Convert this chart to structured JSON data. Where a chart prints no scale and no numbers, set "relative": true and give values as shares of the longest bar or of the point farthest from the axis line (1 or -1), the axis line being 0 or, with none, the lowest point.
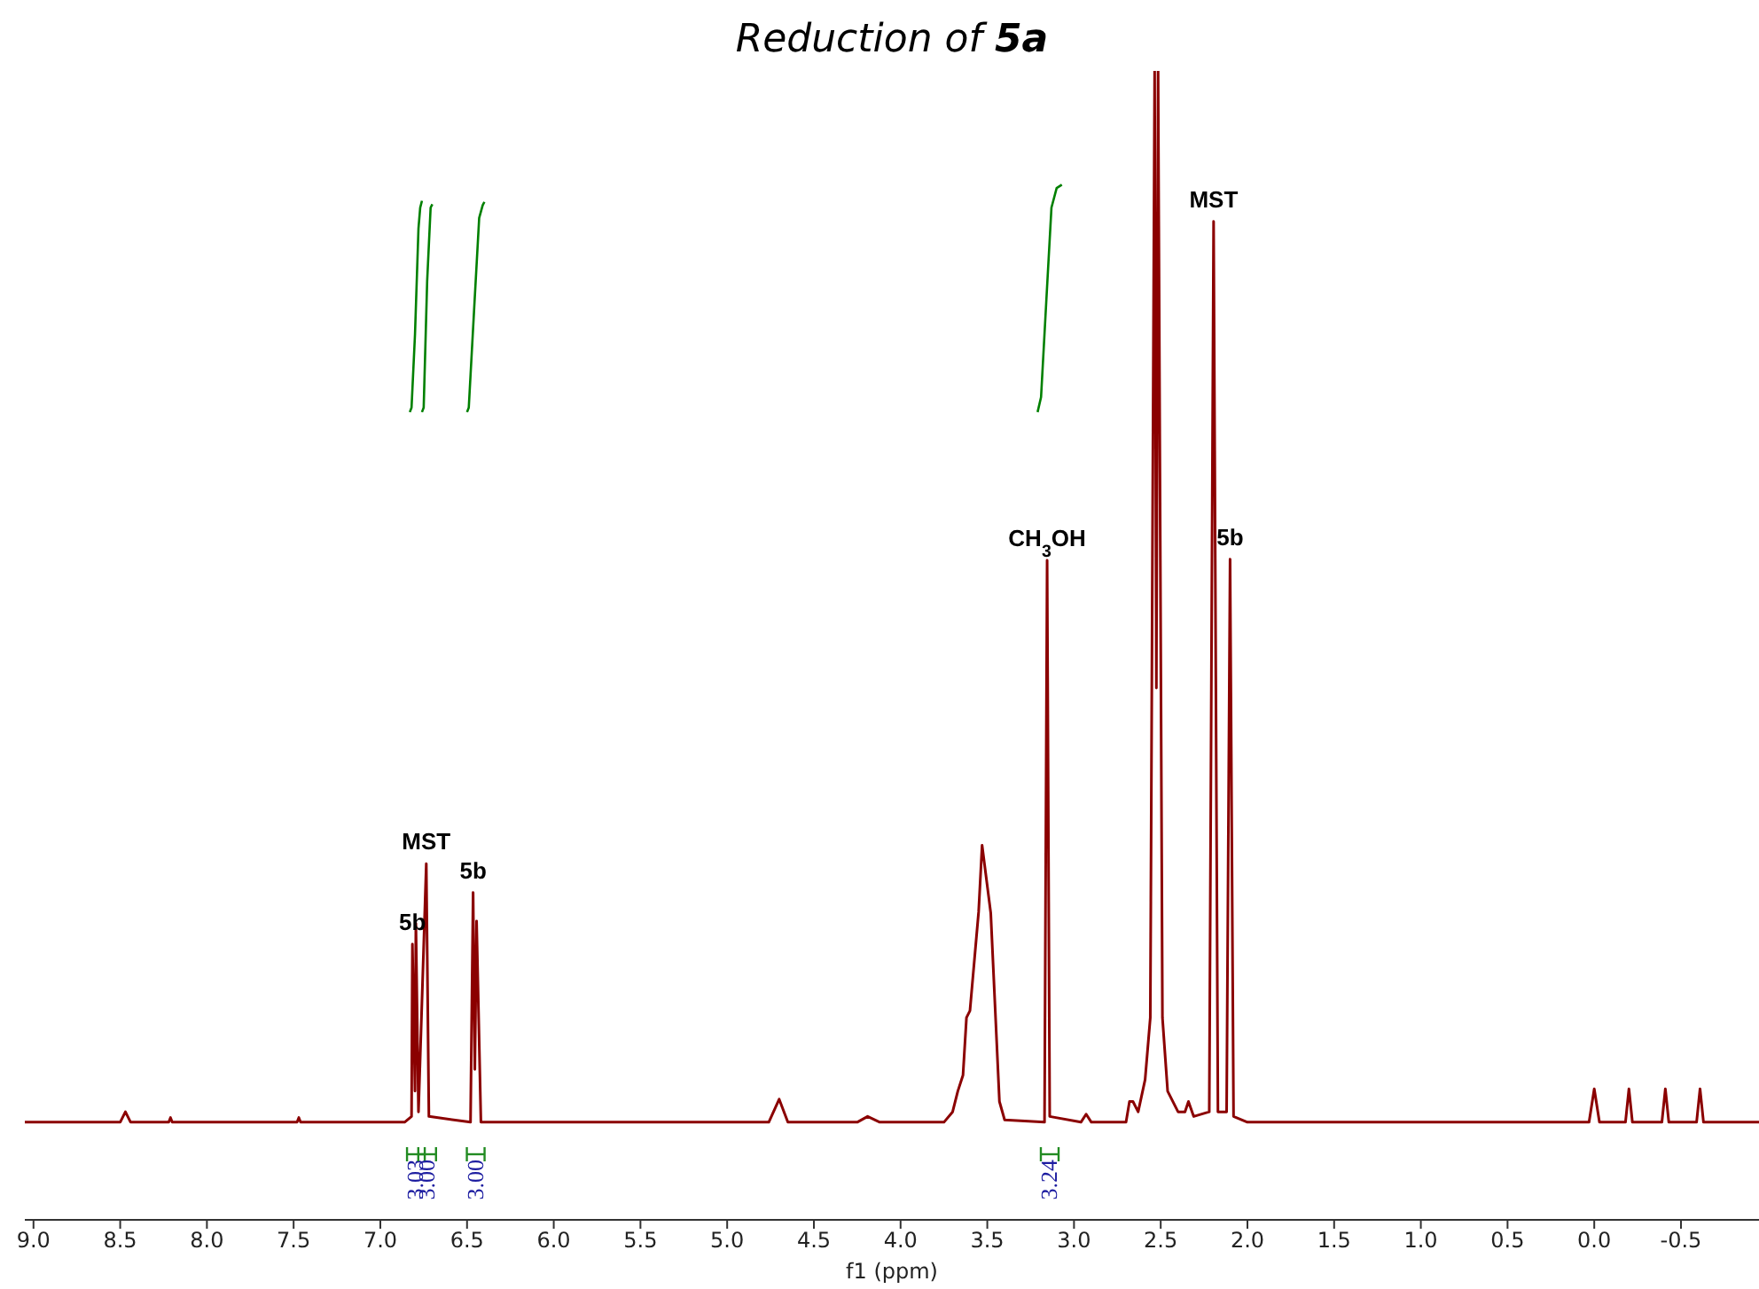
{
  "chart_data": {
    "type": "line",
    "title": "Reduction of 5a",
    "xlabel": "f1 (ppm)",
    "relative": true,
    "grid": false,
    "xlim": [
      9.05,
      -0.95
    ],
    "xticks": [
      {
        "value": 9,
        "label": "9.0"
      },
      {
        "value": 8.5,
        "label": "8.5"
      },
      {
        "value": 8,
        "label": "8.0"
      },
      {
        "value": 7.5,
        "label": "7.5"
      },
      {
        "value": 7,
        "label": "7.0"
      },
      {
        "value": 6.5,
        "label": "6.5"
      },
      {
        "value": 6,
        "label": "6.0"
      },
      {
        "value": 5.5,
        "label": "5.5"
      },
      {
        "value": 5,
        "label": "5.0"
      },
      {
        "value": 4.5,
        "label": "4.5"
      },
      {
        "value": 4,
        "label": "4.0"
      },
      {
        "value": 3.5,
        "label": "3.5"
      },
      {
        "value": 3,
        "label": "3.0"
      },
      {
        "value": 2.5,
        "label": "2.5"
      },
      {
        "value": 2,
        "label": "2.0"
      },
      {
        "value": 1.5,
        "label": "1.5"
      },
      {
        "value": 1,
        "label": "1.0"
      },
      {
        "value": 0.5,
        "label": "0.5"
      },
      {
        "value": 0,
        "label": "0.0"
      },
      {
        "value": -0.5,
        "label": "-0.5"
      }
    ],
    "series": [
      {
        "color": "#8b0000",
        "x": [
          9.05,
          8.5,
          8.47,
          8.44,
          8.22,
          8.21,
          8.2,
          7.48,
          7.47,
          7.46,
          6.86,
          6.82,
          6.815,
          6.8,
          6.795,
          6.78,
          6.735,
          6.72,
          6.48,
          6.465,
          6.455,
          6.445,
          6.42,
          4.76,
          4.7,
          4.65,
          4.25,
          4.19,
          4.12,
          3.75,
          3.7,
          3.67,
          3.64,
          3.62,
          3.6,
          3.55,
          3.53,
          3.48,
          3.43,
          3.4,
          3.17,
          3.155,
          3.14,
          2.96,
          2.93,
          2.9,
          2.7,
          2.68,
          2.66,
          2.63,
          2.59,
          2.56,
          2.535,
          2.525,
          2.515,
          2.49,
          2.46,
          2.4,
          2.36,
          2.34,
          2.31,
          2.22,
          2.195,
          2.17,
          2.12,
          2.1,
          2.08,
          2,
          0.03,
          0,
          -0.03,
          -0.18,
          -0.2,
          -0.22,
          -0.39,
          -0.41,
          -0.43,
          -0.59,
          -0.61,
          -0.63,
          -0.95
        ],
        "values": [
          0.085,
          0.085,
          0.094,
          0.085,
          0.085,
          0.089,
          0.085,
          0.085,
          0.089,
          0.085,
          0.085,
          0.09,
          0.24,
          0.112,
          0.258,
          0.094,
          0.31,
          0.09,
          0.085,
          0.285,
          0.131,
          0.26,
          0.085,
          0.085,
          0.105,
          0.085,
          0.085,
          0.09,
          0.085,
          0.085,
          0.094,
          0.112,
          0.126,
          0.176,
          0.182,
          0.268,
          0.326,
          0.267,
          0.103,
          0.087,
          0.085,
          0.574,
          0.09,
          0.085,
          0.092,
          0.085,
          0.085,
          0.103,
          0.103,
          0.094,
          0.122,
          0.176,
          1,
          0.463,
          1,
          0.176,
          0.112,
          0.094,
          0.094,
          0.103,
          0.09,
          0.094,
          0.869,
          0.094,
          0.094,
          0.575,
          0.09,
          0.085,
          0.085,
          0.114,
          0.085,
          0.085,
          0.114,
          0.085,
          0.085,
          0.114,
          0.085,
          0.085,
          0.114,
          0.085,
          0.085
        ]
      },
      {
        "color": "#008000",
        "x": [
          6.83,
          6.82,
          6.8,
          6.78,
          6.77,
          6.76
        ],
        "values": [
          0.703,
          0.707,
          0.771,
          0.863,
          0.881,
          0.887
        ]
      },
      {
        "color": "#008000",
        "x": [
          6.76,
          6.75,
          6.73,
          6.71,
          6.7
        ],
        "values": [
          0.703,
          0.707,
          0.817,
          0.881,
          0.884
        ]
      },
      {
        "color": "#008000",
        "x": [
          6.5,
          6.49,
          6.46,
          6.43,
          6.41,
          6.4
        ],
        "values": [
          0.703,
          0.707,
          0.79,
          0.872,
          0.883,
          0.886
        ]
      },
      {
        "color": "#008000",
        "x": [
          3.21,
          3.19,
          3.16,
          3.13,
          3.1,
          3.07
        ],
        "values": [
          0.703,
          0.716,
          0.799,
          0.881,
          0.898,
          0.901
        ]
      }
    ],
    "annotations": [
      {
        "text": "5b",
        "x": 6.815,
        "y": 0.24
      },
      {
        "text": "MST",
        "x": 6.735,
        "y": 0.31
      },
      {
        "text": "5b",
        "x": 6.465,
        "y": 0.285
      },
      {
        "text": "CH$_{3}$OH",
        "x": 3.155,
        "y": 0.574
      },
      {
        "text": "MST",
        "x": 2.195,
        "y": 0.869
      },
      {
        "text": "5b",
        "x": 2.1,
        "y": 0.575
      },
      "3.03",
      "3.00",
      "3.00",
      "3.24"
    ]
  }
}
